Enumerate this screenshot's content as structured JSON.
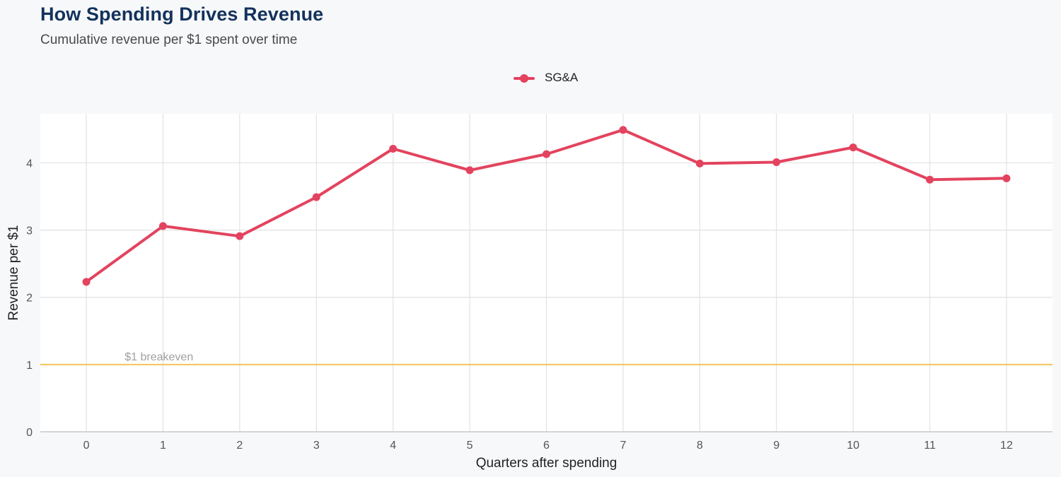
{
  "chart_data": {
    "type": "line",
    "title": "How Spending Drives Revenue",
    "subtitle": "Cumulative revenue per $1 spent over time",
    "xlabel": "Quarters after spending",
    "ylabel": "Revenue per $1",
    "x": [
      0,
      1,
      2,
      3,
      4,
      5,
      6,
      7,
      8,
      9,
      10,
      11,
      12
    ],
    "xticks": [
      "0",
      "1",
      "2",
      "3",
      "4",
      "5",
      "6",
      "7",
      "8",
      "9",
      "10",
      "11",
      "12"
    ],
    "yticks": [
      "0",
      "1",
      "2",
      "3",
      "4"
    ],
    "ylim": [
      0,
      4.73
    ],
    "xlim": [
      -0.6,
      12.6
    ],
    "grid": true,
    "legend_position": "top",
    "series": [
      {
        "name": "SG&A",
        "color": "#e3435e",
        "values": [
          2.23,
          3.06,
          2.91,
          3.49,
          4.21,
          3.89,
          4.13,
          4.49,
          3.99,
          4.01,
          4.23,
          3.75,
          3.77
        ]
      }
    ],
    "reference_line": {
      "y": 1,
      "label": "$1 breakeven",
      "color": "#f2c45a"
    },
    "colors": {
      "panel": "#ffffff",
      "background": "#f7f8fa",
      "grid": "#e2e2e2",
      "title": "#13325b"
    }
  }
}
